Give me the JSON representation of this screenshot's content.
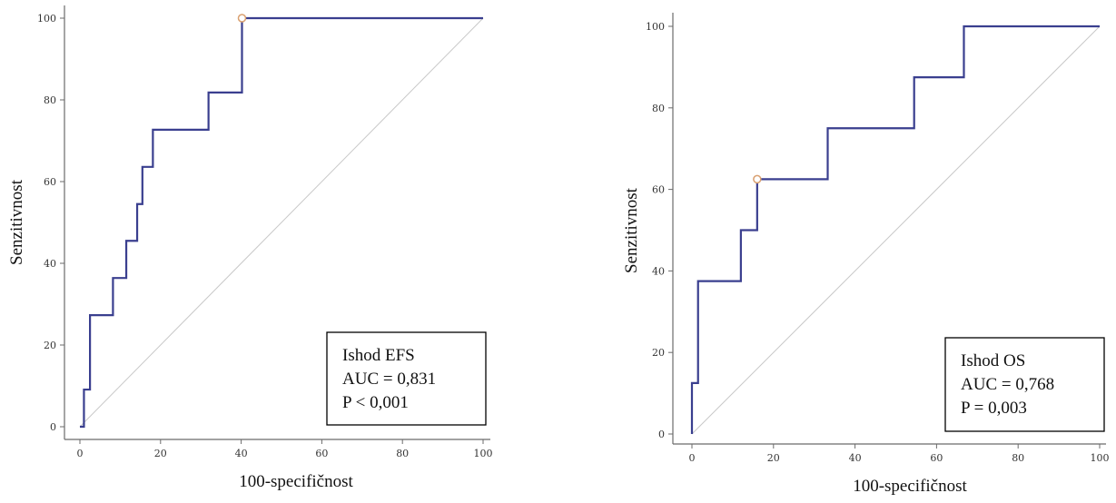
{
  "chart_data": [
    {
      "type": "line",
      "xlabel": "100-specifičnost",
      "ylabel": "Senzitivnost",
      "xlim": [
        0,
        100
      ],
      "ylim": [
        0,
        100
      ],
      "xticks": [
        "0",
        "20",
        "40",
        "60",
        "80",
        "100"
      ],
      "yticks": [
        "0",
        "20",
        "40",
        "60",
        "80",
        "100"
      ],
      "grid": false,
      "series": [
        {
          "x": [
            0,
            1,
            1,
            2.5,
            2.5,
            8.2,
            8.2,
            11.5,
            11.5,
            14.2,
            14.2,
            15.5,
            15.5,
            18.1,
            18.1,
            31.9,
            31.9,
            40.2,
            40.2,
            100
          ],
          "y": [
            0,
            0,
            9.1,
            9.1,
            27.3,
            27.3,
            36.4,
            36.4,
            45.5,
            45.5,
            54.5,
            54.5,
            63.6,
            63.6,
            72.7,
            72.7,
            81.8,
            81.8,
            100,
            100
          ]
        },
        {
          "x": [
            0,
            100
          ],
          "y": [
            0,
            100
          ]
        }
      ],
      "optimal_point": {
        "x": 40.2,
        "y": 100
      },
      "legend_box": {
        "lines": [
          "Ishod EFS",
          "AUC = 0,831",
          "P < 0,001"
        ],
        "placement": "bottom-right"
      },
      "colors": {
        "roc": "#3a3f8f",
        "reference": "#c8c8c8",
        "point": "#d9a070"
      }
    },
    {
      "type": "line",
      "xlabel": "100-specifičnost",
      "ylabel": "Senzitivnost",
      "xlim": [
        0,
        100
      ],
      "ylim": [
        0,
        100
      ],
      "xticks": [
        "0",
        "20",
        "40",
        "60",
        "80",
        "100"
      ],
      "yticks": [
        "0",
        "20",
        "40",
        "60",
        "80",
        "100"
      ],
      "grid": false,
      "series": [
        {
          "x": [
            0,
            0,
            1.5,
            1.5,
            12,
            12,
            16,
            16,
            33.3,
            33.3,
            54.5,
            54.5,
            66.7,
            66.7,
            100
          ],
          "y": [
            0,
            12.5,
            12.5,
            37.5,
            37.5,
            50,
            50,
            62.5,
            62.5,
            75,
            75,
            87.5,
            87.5,
            100,
            100
          ]
        },
        {
          "x": [
            0,
            100
          ],
          "y": [
            0,
            100
          ]
        }
      ],
      "optimal_point": {
        "x": 16,
        "y": 62.5
      },
      "legend_box": {
        "lines": [
          "Ishod OS",
          "AUC = 0,768",
          "P = 0,003"
        ],
        "placement": "bottom-right"
      },
      "colors": {
        "roc": "#3a3f8f",
        "reference": "#c8c8c8",
        "point": "#d9a070"
      }
    }
  ]
}
